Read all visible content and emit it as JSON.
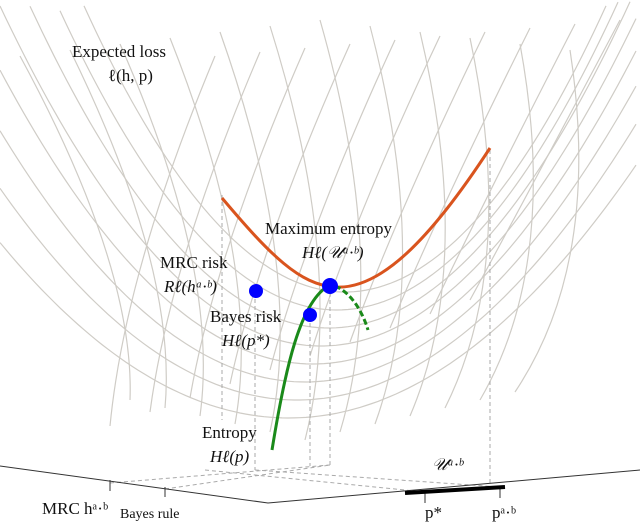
{
  "labels": {
    "expected_loss": "Expected loss",
    "expected_loss_math": "ℓ(h, p)",
    "max_entropy": "Maximum entropy",
    "max_entropy_math": "Hℓ(𝒰ᵃ·ᵇ)",
    "mrc_risk": "MRC risk",
    "mrc_risk_math": "Rℓ(hᵃ·ᵇ)",
    "bayes_risk": "Bayes risk",
    "bayes_risk_math": "Hℓ(p*)",
    "entropy": "Entropy",
    "entropy_math": "Hℓ(p)",
    "uncertainty_set": "𝒰ᵃ·ᵇ",
    "mrc_rule": "MRC hᵃ·ᵇ",
    "bayes_rule": "Bayes rule",
    "p_star": "p*",
    "p_ab": "pᵃ·ᵇ"
  },
  "colors": {
    "max_entropy_curve": "#d9541e",
    "entropy_curve": "#1a8a1a",
    "points": "#0000ff",
    "surface": "#cfccc6"
  }
}
